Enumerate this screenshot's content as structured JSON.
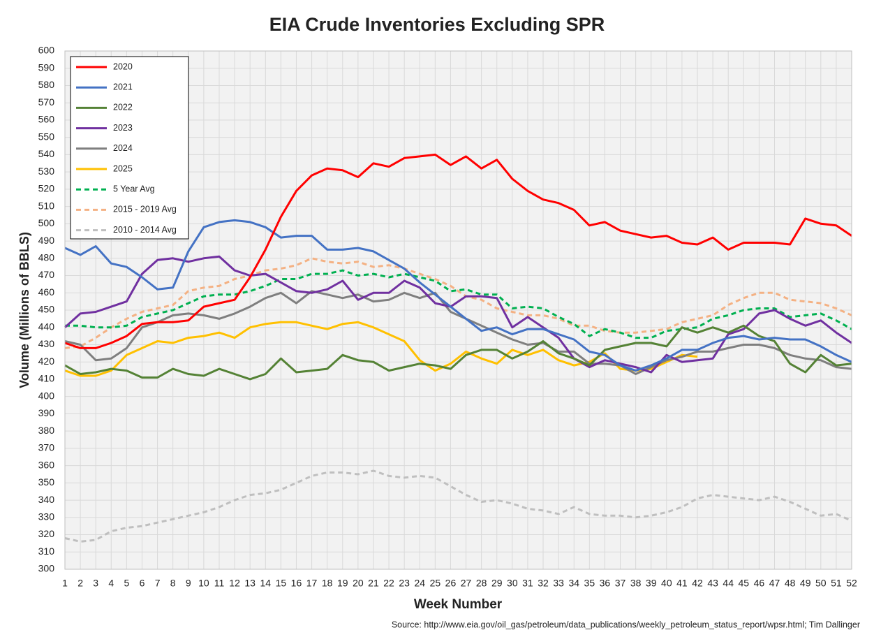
{
  "chart_data": {
    "type": "line",
    "title": "EIA Crude Inventories Excluding SPR",
    "ylabel": "Volume (Millions of BBLS)",
    "xlabel": "Week Number",
    "source": "Source: http://www.eia.gov/oil_gas/petroleum/data_publications/weekly_petroleum_status_report/wpsr.html; Tim Dallinger",
    "x": [
      1,
      2,
      3,
      4,
      5,
      6,
      7,
      8,
      9,
      10,
      11,
      12,
      13,
      14,
      15,
      16,
      17,
      18,
      19,
      20,
      21,
      22,
      23,
      24,
      25,
      26,
      27,
      28,
      29,
      30,
      31,
      32,
      33,
      34,
      35,
      36,
      37,
      38,
      39,
      40,
      41,
      42,
      43,
      44,
      45,
      46,
      47,
      48,
      49,
      50,
      51,
      52
    ],
    "xlim": [
      1,
      52
    ],
    "xticks": [
      1,
      2,
      3,
      4,
      5,
      6,
      7,
      8,
      9,
      10,
      11,
      12,
      13,
      14,
      15,
      16,
      17,
      18,
      19,
      20,
      21,
      22,
      23,
      24,
      25,
      26,
      27,
      28,
      29,
      30,
      31,
      32,
      33,
      34,
      35,
      36,
      37,
      38,
      39,
      40,
      41,
      42,
      43,
      44,
      45,
      46,
      47,
      48,
      49,
      50,
      51,
      52
    ],
    "ylim": [
      300,
      600
    ],
    "yticks": [
      300,
      310,
      320,
      330,
      340,
      350,
      360,
      370,
      380,
      390,
      400,
      410,
      420,
      430,
      440,
      450,
      460,
      470,
      480,
      490,
      500,
      510,
      520,
      530,
      540,
      550,
      560,
      570,
      580,
      590,
      600
    ],
    "grid": true,
    "legend": "upper left",
    "series": [
      {
        "name": "2020",
        "color": "#ff0000",
        "dashed": false,
        "values": [
          431,
          428,
          428,
          431,
          435,
          442,
          443,
          443,
          444,
          452,
          454,
          456,
          469,
          485,
          504,
          519,
          528,
          532,
          531,
          527,
          535,
          533,
          538,
          539,
          540,
          534,
          539,
          532,
          537,
          526,
          519,
          514,
          512,
          508,
          499,
          501,
          496,
          494,
          492,
          493,
          489,
          488,
          492,
          485,
          489,
          489,
          489,
          488,
          503,
          500,
          499,
          493
        ]
      },
      {
        "name": "2021",
        "color": "#4472c4",
        "dashed": false,
        "values": [
          486,
          482,
          487,
          477,
          475,
          469,
          462,
          463,
          484,
          498,
          501,
          502,
          501,
          498,
          492,
          493,
          493,
          485,
          485,
          486,
          484,
          479,
          474,
          466,
          459,
          452,
          445,
          438,
          440,
          436,
          439,
          439,
          436,
          433,
          426,
          424,
          418,
          415,
          418,
          422,
          427,
          427,
          431,
          434,
          435,
          433,
          434,
          433,
          433,
          429,
          424,
          420
        ]
      },
      {
        "name": "2022",
        "color": "#548235",
        "dashed": false,
        "values": [
          418,
          413,
          414,
          416,
          415,
          411,
          411,
          416,
          413,
          412,
          416,
          413,
          410,
          413,
          422,
          414,
          415,
          416,
          424,
          421,
          420,
          415,
          417,
          419,
          418,
          416,
          424,
          427,
          427,
          422,
          426,
          432,
          425,
          422,
          418,
          427,
          429,
          431,
          431,
          429,
          440,
          437,
          440,
          437,
          441,
          435,
          432,
          419,
          414,
          424,
          418,
          419
        ]
      },
      {
        "name": "2023",
        "color": "#7030a0",
        "dashed": false,
        "values": [
          440,
          448,
          449,
          452,
          455,
          471,
          479,
          480,
          478,
          480,
          481,
          473,
          470,
          471,
          466,
          461,
          460,
          462,
          467,
          456,
          460,
          460,
          467,
          463,
          454,
          452,
          458,
          458,
          457,
          440,
          446,
          440,
          434,
          422,
          417,
          421,
          419,
          417,
          414,
          424,
          420,
          421,
          422,
          436,
          439,
          448,
          450,
          445,
          441,
          444,
          437,
          431
        ]
      },
      {
        "name": "2024",
        "color": "#7f7f7f",
        "dashed": false,
        "values": [
          432,
          430,
          421,
          422,
          428,
          440,
          443,
          447,
          448,
          447,
          445,
          448,
          452,
          457,
          460,
          454,
          461,
          459,
          457,
          459,
          455,
          456,
          460,
          457,
          460,
          449,
          445,
          441,
          437,
          433,
          430,
          431,
          426,
          426,
          419,
          419,
          418,
          413,
          417,
          421,
          423,
          426,
          426,
          428,
          430,
          430,
          428,
          424,
          422,
          421,
          417,
          416
        ]
      },
      {
        "name": "2025",
        "color": "#ffc000",
        "dashed": false,
        "values": [
          415,
          412,
          412,
          415,
          424,
          428,
          432,
          431,
          434,
          435,
          437,
          434,
          440,
          442,
          443,
          443,
          441,
          439,
          442,
          443,
          440,
          436,
          432,
          421,
          415,
          419,
          426,
          422,
          419,
          427,
          424,
          427,
          421,
          418,
          420,
          425,
          416,
          415,
          416,
          420,
          424,
          423,
          null,
          null,
          null,
          null,
          null,
          null,
          null,
          null,
          null,
          null
        ]
      },
      {
        "name": "5 Year Avg",
        "color": "#00b050",
        "dashed": true,
        "values": [
          441,
          441,
          440,
          440,
          441,
          446,
          448,
          450,
          454,
          458,
          459,
          459,
          461,
          464,
          468,
          468,
          471,
          471,
          473,
          470,
          471,
          469,
          471,
          469,
          467,
          461,
          462,
          459,
          459,
          451,
          452,
          451,
          446,
          442,
          435,
          439,
          437,
          434,
          434,
          438,
          439,
          440,
          445,
          447,
          450,
          451,
          451,
          446,
          447,
          448,
          444,
          439
        ]
      },
      {
        "name": "2015 - 2019 Avg",
        "color": "#f4b183",
        "dashed": true,
        "values": [
          428,
          429,
          434,
          440,
          445,
          449,
          451,
          453,
          461,
          463,
          464,
          468,
          470,
          473,
          474,
          476,
          480,
          478,
          477,
          478,
          475,
          476,
          474,
          471,
          468,
          464,
          458,
          456,
          451,
          449,
          447,
          447,
          445,
          441,
          441,
          438,
          437,
          437,
          438,
          439,
          443,
          445,
          447,
          453,
          457,
          460,
          460,
          456,
          455,
          454,
          451,
          447
        ]
      },
      {
        "name": "2010 - 2014 Avg",
        "color": "#bfbfbf",
        "dashed": true,
        "values": [
          318,
          316,
          317,
          322,
          324,
          325,
          327,
          329,
          331,
          333,
          336,
          340,
          343,
          344,
          346,
          350,
          354,
          356,
          356,
          355,
          357,
          354,
          353,
          354,
          353,
          348,
          343,
          339,
          340,
          338,
          335,
          334,
          332,
          336,
          332,
          331,
          331,
          330,
          331,
          333,
          336,
          341,
          343,
          342,
          341,
          340,
          342,
          339,
          335,
          331,
          332,
          328
        ]
      }
    ]
  }
}
